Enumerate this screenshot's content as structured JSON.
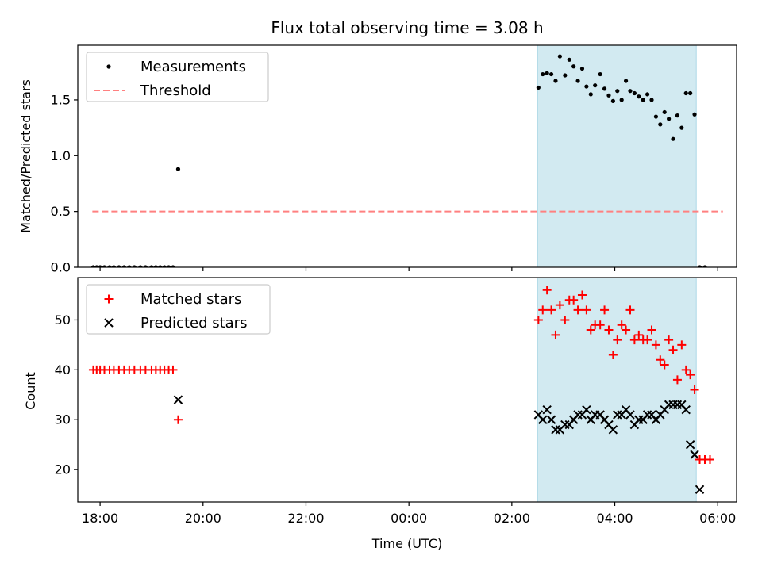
{
  "chart_data": [
    {
      "type": "scatter",
      "title": "Flux total observing time = 3.08 h",
      "xlabel": "",
      "ylabel": "Matched/Predicted stars",
      "xlim": [
        "17:34",
        "06:22"
      ],
      "ylim": [
        0,
        1.99
      ],
      "yticks": [
        0.0,
        0.5,
        1.0,
        1.5
      ],
      "ytick_labels": [
        "0.0",
        "0.5",
        "1.0",
        "1.5"
      ],
      "xticks": [
        "18:00",
        "20:00",
        "22:00",
        "00:00",
        "02:00",
        "04:00",
        "06:00"
      ],
      "shaded_region": {
        "x": [
          "02:30",
          "05:35"
        ],
        "color": "#add8e6"
      },
      "legend": {
        "position": "top-left",
        "entries": [
          {
            "label": "Measurements",
            "marker": "dot",
            "color": "#000000"
          },
          {
            "label": "Threshold",
            "marker": "dashed-line",
            "color": "#ff8080"
          }
        ]
      },
      "threshold": {
        "name": "Threshold",
        "y": 0.5,
        "x": [
          "17:51",
          "06:06"
        ],
        "color": "#ff8080"
      },
      "series": [
        {
          "name": "Measurements",
          "color": "#000000",
          "marker": "dot",
          "points": [
            [
              "17:52",
              0
            ],
            [
              "17:56",
              0
            ],
            [
              "18:00",
              0
            ],
            [
              "18:05",
              0
            ],
            [
              "18:11",
              0
            ],
            [
              "18:16",
              0
            ],
            [
              "18:22",
              0
            ],
            [
              "18:28",
              0
            ],
            [
              "18:34",
              0
            ],
            [
              "18:40",
              0
            ],
            [
              "18:47",
              0
            ],
            [
              "18:53",
              0
            ],
            [
              "19:00",
              0
            ],
            [
              "19:05",
              0
            ],
            [
              "19:10",
              0
            ],
            [
              "19:15",
              0
            ],
            [
              "19:20",
              0
            ],
            [
              "19:25",
              0
            ],
            [
              "19:31",
              0.88
            ],
            [
              "02:31",
              1.61
            ],
            [
              "02:36",
              1.73
            ],
            [
              "02:41",
              1.74
            ],
            [
              "02:46",
              1.73
            ],
            [
              "02:51",
              1.67
            ],
            [
              "02:56",
              1.89
            ],
            [
              "03:02",
              1.72
            ],
            [
              "03:07",
              1.86
            ],
            [
              "03:12",
              1.8
            ],
            [
              "03:17",
              1.67
            ],
            [
              "03:22",
              1.78
            ],
            [
              "03:27",
              1.62
            ],
            [
              "03:32",
              1.55
            ],
            [
              "03:37",
              1.63
            ],
            [
              "03:43",
              1.73
            ],
            [
              "03:48",
              1.6
            ],
            [
              "03:53",
              1.54
            ],
            [
              "03:58",
              1.49
            ],
            [
              "04:03",
              1.58
            ],
            [
              "04:08",
              1.5
            ],
            [
              "04:13",
              1.67
            ],
            [
              "04:18",
              1.58
            ],
            [
              "04:23",
              1.56
            ],
            [
              "04:28",
              1.53
            ],
            [
              "04:33",
              1.5
            ],
            [
              "04:38",
              1.55
            ],
            [
              "04:43",
              1.5
            ],
            [
              "04:48",
              1.35
            ],
            [
              "04:53",
              1.28
            ],
            [
              "04:58",
              1.39
            ],
            [
              "05:03",
              1.33
            ],
            [
              "05:08",
              1.15
            ],
            [
              "05:13",
              1.36
            ],
            [
              "05:18",
              1.25
            ],
            [
              "05:23",
              1.56
            ],
            [
              "05:28",
              1.56
            ],
            [
              "05:33",
              1.37
            ],
            [
              "05:39",
              0
            ],
            [
              "05:45",
              0
            ]
          ]
        }
      ]
    },
    {
      "type": "scatter",
      "title": "",
      "xlabel": "Time (UTC)",
      "ylabel": "Count",
      "xlim": [
        "17:34",
        "06:22"
      ],
      "ylim": [
        13.5,
        58.5
      ],
      "yticks": [
        20,
        30,
        40,
        50
      ],
      "ytick_labels": [
        "20",
        "30",
        "40",
        "50"
      ],
      "xticks": [
        "18:00",
        "20:00",
        "22:00",
        "00:00",
        "02:00",
        "04:00",
        "06:00"
      ],
      "xtick_labels": [
        "18:00",
        "20:00",
        "22:00",
        "00:00",
        "02:00",
        "04:00",
        "06:00"
      ],
      "shaded_region": {
        "x": [
          "02:30",
          "05:35"
        ],
        "color": "#add8e6"
      },
      "legend": {
        "position": "top-left",
        "entries": [
          {
            "label": "Matched stars",
            "marker": "plus",
            "color": "#ff0000"
          },
          {
            "label": "Predicted stars",
            "marker": "x",
            "color": "#000000"
          }
        ]
      },
      "series": [
        {
          "name": "Matched stars",
          "color": "#ff0000",
          "marker": "plus",
          "points": [
            [
              "17:52",
              40
            ],
            [
              "17:56",
              40
            ],
            [
              "18:00",
              40
            ],
            [
              "18:05",
              40
            ],
            [
              "18:11",
              40
            ],
            [
              "18:16",
              40
            ],
            [
              "18:22",
              40
            ],
            [
              "18:28",
              40
            ],
            [
              "18:34",
              40
            ],
            [
              "18:40",
              40
            ],
            [
              "18:47",
              40
            ],
            [
              "18:53",
              40
            ],
            [
              "19:00",
              40
            ],
            [
              "19:05",
              40
            ],
            [
              "19:10",
              40
            ],
            [
              "19:15",
              40
            ],
            [
              "19:20",
              40
            ],
            [
              "19:25",
              40
            ],
            [
              "19:31",
              30
            ],
            [
              "02:31",
              50
            ],
            [
              "02:36",
              52
            ],
            [
              "02:41",
              56
            ],
            [
              "02:46",
              52
            ],
            [
              "02:51",
              47
            ],
            [
              "02:56",
              53
            ],
            [
              "03:02",
              50
            ],
            [
              "03:07",
              54
            ],
            [
              "03:12",
              54
            ],
            [
              "03:17",
              52
            ],
            [
              "03:22",
              55
            ],
            [
              "03:27",
              52
            ],
            [
              "03:32",
              48
            ],
            [
              "03:37",
              49
            ],
            [
              "03:43",
              49
            ],
            [
              "03:48",
              52
            ],
            [
              "03:53",
              48
            ],
            [
              "03:58",
              43
            ],
            [
              "04:03",
              46
            ],
            [
              "04:08",
              49
            ],
            [
              "04:13",
              48
            ],
            [
              "04:18",
              52
            ],
            [
              "04:23",
              46
            ],
            [
              "04:28",
              47
            ],
            [
              "04:33",
              46
            ],
            [
              "04:38",
              46
            ],
            [
              "04:43",
              48
            ],
            [
              "04:48",
              45
            ],
            [
              "04:53",
              42
            ],
            [
              "04:58",
              41
            ],
            [
              "05:03",
              46
            ],
            [
              "05:08",
              44
            ],
            [
              "05:13",
              38
            ],
            [
              "05:18",
              45
            ],
            [
              "05:23",
              40
            ],
            [
              "05:28",
              39
            ],
            [
              "05:33",
              36
            ],
            [
              "05:39",
              22
            ],
            [
              "05:45",
              22
            ],
            [
              "05:51",
              22
            ]
          ]
        },
        {
          "name": "Predicted stars",
          "color": "#000000",
          "marker": "x",
          "points": [
            [
              "19:31",
              34
            ],
            [
              "02:31",
              31
            ],
            [
              "02:36",
              30
            ],
            [
              "02:41",
              32
            ],
            [
              "02:46",
              30
            ],
            [
              "02:51",
              28
            ],
            [
              "02:56",
              28
            ],
            [
              "03:02",
              29
            ],
            [
              "03:07",
              29
            ],
            [
              "03:12",
              30
            ],
            [
              "03:17",
              31
            ],
            [
              "03:22",
              31
            ],
            [
              "03:27",
              32
            ],
            [
              "03:32",
              30
            ],
            [
              "03:37",
              31
            ],
            [
              "03:43",
              31
            ],
            [
              "03:48",
              30
            ],
            [
              "03:53",
              29
            ],
            [
              "03:58",
              28
            ],
            [
              "04:03",
              31
            ],
            [
              "04:08",
              31
            ],
            [
              "04:13",
              32
            ],
            [
              "04:18",
              31
            ],
            [
              "04:23",
              29
            ],
            [
              "04:28",
              30
            ],
            [
              "04:33",
              30
            ],
            [
              "04:38",
              31
            ],
            [
              "04:43",
              31
            ],
            [
              "04:48",
              30
            ],
            [
              "04:53",
              31
            ],
            [
              "04:58",
              32
            ],
            [
              "05:03",
              33
            ],
            [
              "05:08",
              33
            ],
            [
              "05:13",
              33
            ],
            [
              "05:18",
              33
            ],
            [
              "05:23",
              32
            ],
            [
              "05:28",
              25
            ],
            [
              "05:33",
              23
            ],
            [
              "05:39",
              16
            ]
          ]
        }
      ]
    }
  ]
}
